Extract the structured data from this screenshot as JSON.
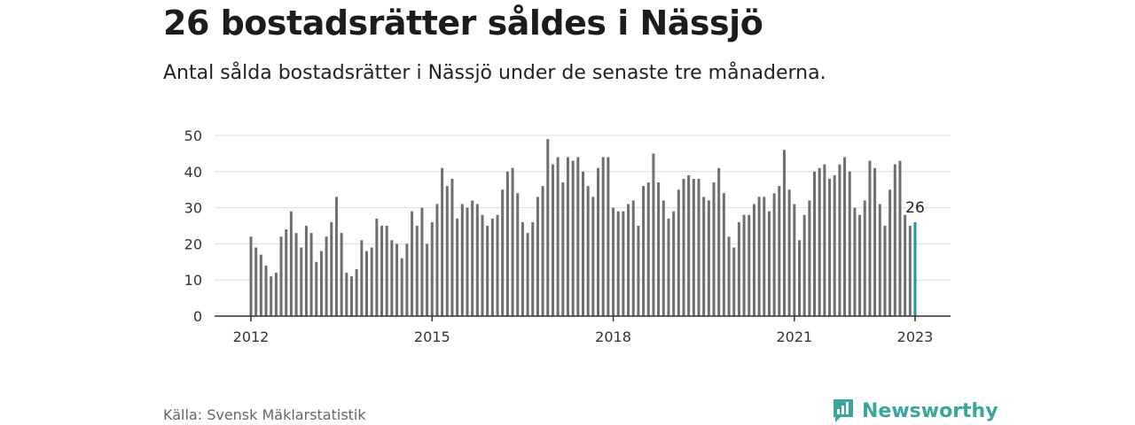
{
  "header": {
    "title": "26 bostadsrätter såldes i Nässjö",
    "subtitle": "Antal sålda bostadsrätter i Nässjö under de senaste tre månaderna."
  },
  "footer": {
    "source": "Källa: Svensk Mäklarstatistik",
    "brand": "Newsworthy"
  },
  "colors": {
    "bar": "#6e6e73",
    "highlight": "#1a9a98",
    "grid": "#dddddd",
    "axis": "#333333",
    "brand": "#3aa69c"
  },
  "chart_data": {
    "type": "bar",
    "title": "",
    "xlabel": "",
    "ylabel": "",
    "ylim": [
      0,
      50
    ],
    "yticks": [
      0,
      10,
      20,
      30,
      40,
      50
    ],
    "x_tick_labels": [
      "2012",
      "2015",
      "2018",
      "2021",
      "2023"
    ],
    "x_tick_indices": [
      0,
      36,
      72,
      108,
      132
    ],
    "grid": true,
    "highlight_label": "26",
    "values": [
      22,
      19,
      17,
      14,
      11,
      12,
      22,
      24,
      29,
      23,
      19,
      25,
      23,
      15,
      18,
      22,
      26,
      33,
      23,
      12,
      11,
      13,
      21,
      18,
      19,
      27,
      25,
      25,
      21,
      20,
      16,
      20,
      29,
      25,
      30,
      20,
      26,
      31,
      41,
      36,
      38,
      27,
      31,
      30,
      32,
      31,
      28,
      25,
      27,
      28,
      35,
      40,
      41,
      34,
      26,
      23,
      26,
      33,
      36,
      49,
      42,
      44,
      37,
      44,
      43,
      44,
      40,
      36,
      33,
      41,
      44,
      44,
      30,
      29,
      29,
      31,
      32,
      25,
      36,
      37,
      45,
      37,
      32,
      27,
      29,
      35,
      38,
      39,
      38,
      38,
      33,
      32,
      37,
      41,
      34,
      22,
      19,
      26,
      28,
      28,
      31,
      33,
      33,
      29,
      34,
      36,
      46,
      35,
      31,
      21,
      28,
      32,
      40,
      41,
      42,
      38,
      39,
      42,
      44,
      40,
      30,
      28,
      32,
      43,
      41,
      31,
      25,
      35,
      42,
      43,
      28,
      25,
      26
    ]
  }
}
